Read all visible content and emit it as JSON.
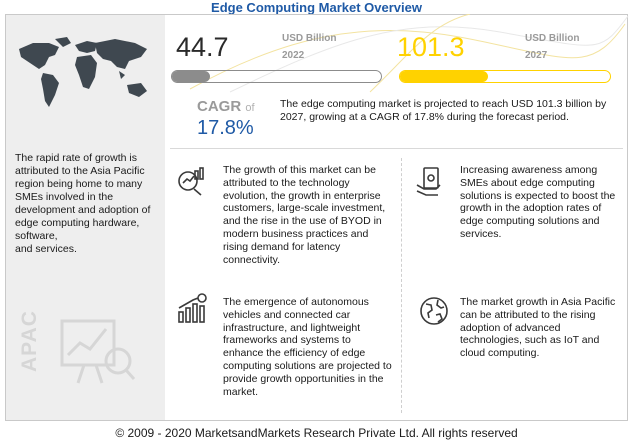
{
  "header": {
    "title": "Edge Computing Market Overview"
  },
  "market_2022": {
    "value": "44.7",
    "unit": "USD Billion",
    "year": "2022",
    "fill_fraction": 0.18
  },
  "market_2027": {
    "value": "101.3",
    "unit": "USD Billion",
    "year": "2027",
    "fill_fraction": 0.42
  },
  "cagr": {
    "label": "CAGR",
    "of": "of",
    "value": "17.8%"
  },
  "summary": "The edge computing market is projected to reach USD 101.3 billion by 2027, growing at a CAGR of 17.8% during the forecast period.",
  "left_panel": {
    "text": "The rapid rate of growth is attributed to the Asia Pacific region being home to many SMEs involved in the development and adoption of edge computing hardware, software,\nand services.",
    "region_label": "APAC"
  },
  "facts": [
    {
      "icon": "growth-chart-icon",
      "text": "The growth of this market can be attributed to the technology evolution, the growth in enterprise customers, large-scale investment, and the rise in the use of BYOD in modern business practices and rising demand for latency connectivity."
    },
    {
      "icon": "money-hand-icon",
      "text": "Increasing awareness among SMEs about edge computing solutions is expected to boost the growth in the adoption rates of edge computing solutions and services."
    },
    {
      "icon": "revenue-bars-icon",
      "text": "The emergence of autonomous vehicles and connected car infrastructure, and lightweight frameworks and systems to enhance the efficiency of edge computing solutions are projected to provide growth opportunities in the market."
    },
    {
      "icon": "globe-icon",
      "text": "The market growth in Asia Pacific can be attributed to the rising adoption of advanced technologies, such as IoT and cloud computing."
    }
  ],
  "footer": "© 2009 - 2020 MarketsandMarkets Research Private Ltd. All rights reserved",
  "colors": {
    "title": "#1f5aa6",
    "bar_2022": "#8c8c8c",
    "bar_2027": "#ffd200",
    "cagr": "#1f5aa6"
  }
}
